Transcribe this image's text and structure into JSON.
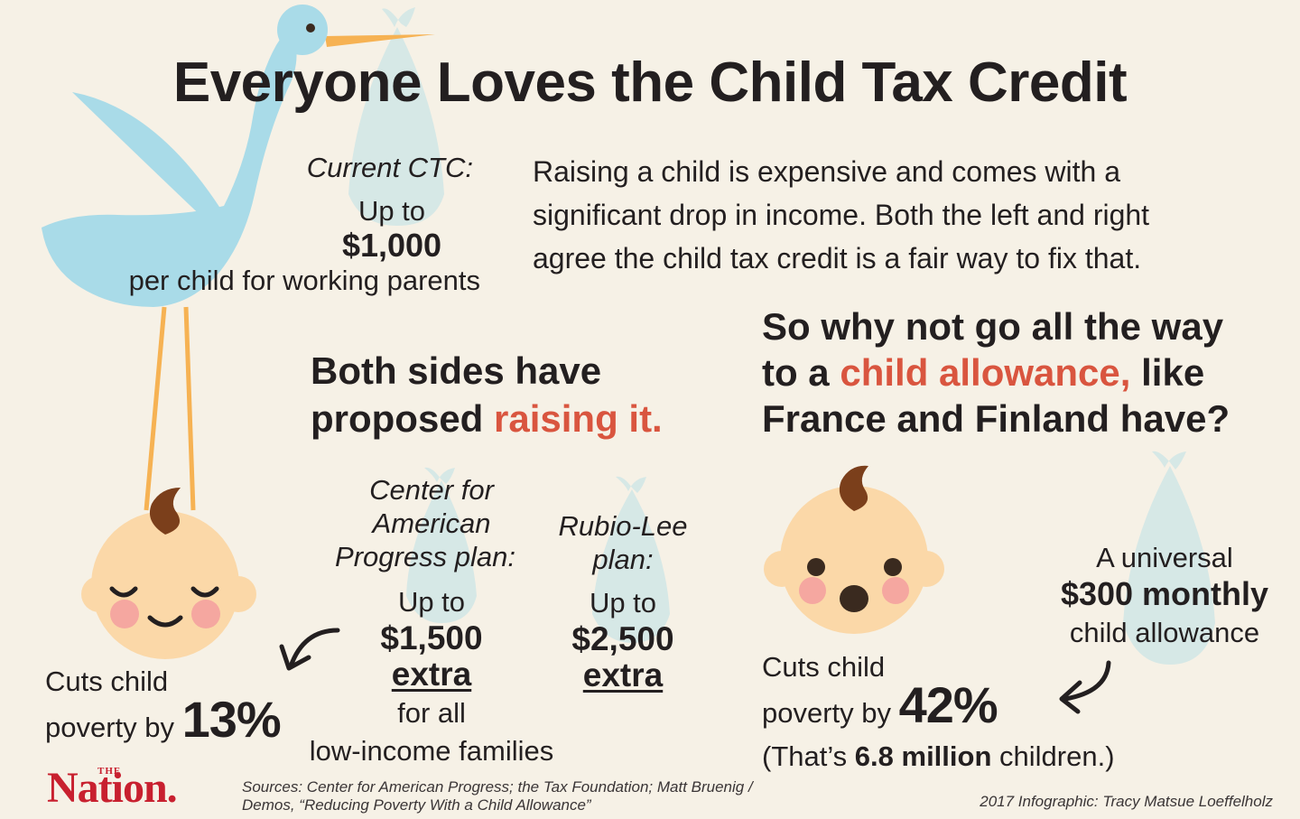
{
  "title": "Everyone Loves the Child Tax Credit",
  "current_ctc": {
    "label": "Current CTC:",
    "up_to": "Up to",
    "amount": "$1,000",
    "description": "per child for working parents"
  },
  "intro": {
    "line1": "Raising a child is expensive and comes with a",
    "line2": "significant drop in income. Both the left and right",
    "line3": "agree the child tax credit is a fair way to fix that."
  },
  "both_sides": {
    "line1": "Both sides have",
    "line2_prefix": "proposed ",
    "line2_highlight": "raising it."
  },
  "allowance_question": {
    "line1": "So why not go all the way",
    "line2_prefix": "to a ",
    "line2_highlight": "child allowance,",
    "line2_suffix": " like",
    "line3": "France and Finland have?"
  },
  "cap_plan": {
    "name_line1": "Center for",
    "name_line2": "American",
    "name_line3": "Progress plan:",
    "up_to": "Up to",
    "amount": "$1,500",
    "extra": "extra",
    "for_line1": "for all",
    "for_line2": "low-income families"
  },
  "rubio_plan": {
    "name_line1": "Rubio-Lee",
    "name_line2": "plan:",
    "up_to": "Up to",
    "amount": "$2,500",
    "extra": "extra"
  },
  "left_result": {
    "line1": "Cuts child",
    "line2": "poverty by ",
    "percent": "13%"
  },
  "universal": {
    "line1": "A universal",
    "line2": "$300 monthly",
    "line3": "child allowance"
  },
  "right_result": {
    "line1": "Cuts child",
    "line2": "poverty by ",
    "percent": "42%",
    "note_prefix": "(That’s ",
    "note_bold": "6.8 million",
    "note_suffix": " children.)"
  },
  "footer": {
    "logo_small": "THE",
    "logo": "Nation.",
    "sources_line1": "Sources: Center for American Progress; the Tax Foundation; Matt Bruenig /",
    "sources_line2": "Demos, “Reducing Poverty With a Child Allowance”",
    "credit": "2017 Infographic: Tracy Matsue Loeffelholz"
  },
  "colors": {
    "background": "#f6f1e6",
    "accent_red": "#d9553f",
    "stork_blue": "#a9dbe8",
    "bundle_blue": "#d6e8e6",
    "skin": "#fbd8a8",
    "cheek": "#f5a7a0",
    "hair": "#7b3f1b",
    "beak_legs": "#f6b253",
    "logo_red": "#c8202f"
  },
  "icons": [
    "stork-icon",
    "baby-bundle-icon",
    "sleeping-baby-icon",
    "surprised-baby-icon",
    "curved-arrow-icon"
  ]
}
